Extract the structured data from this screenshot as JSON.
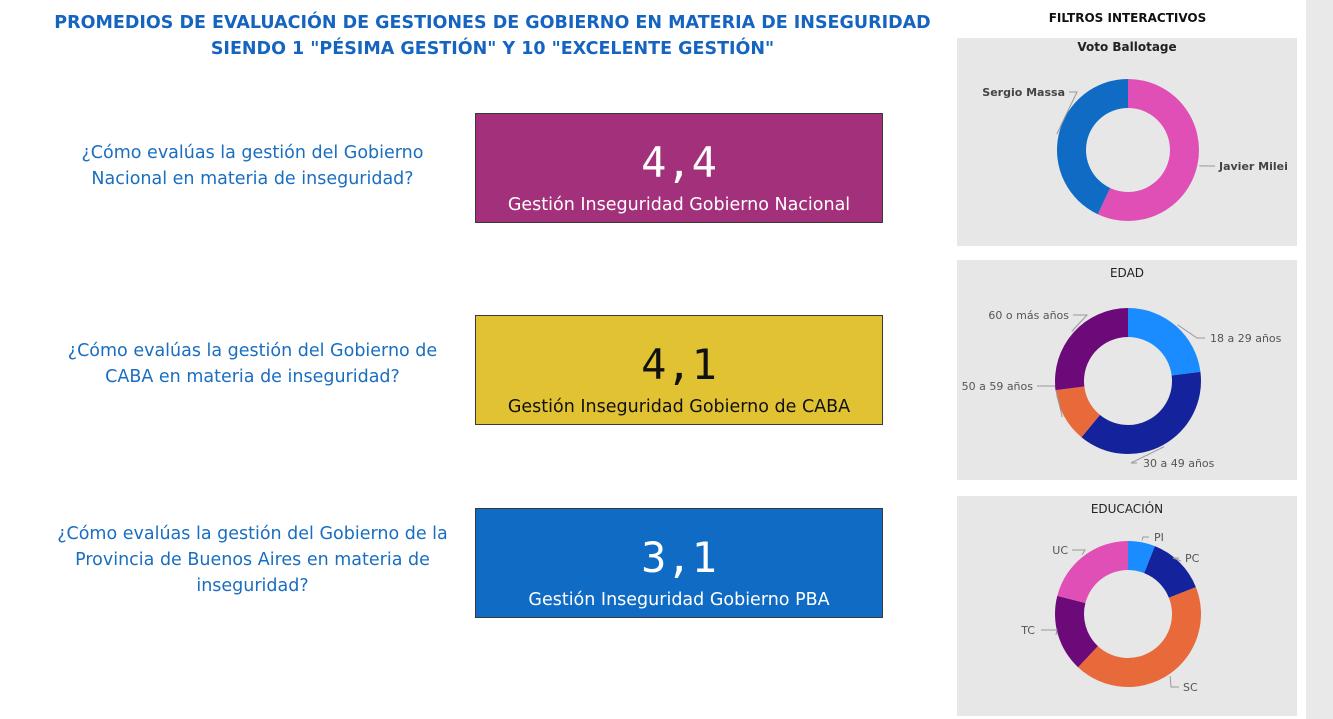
{
  "header": {
    "title_line1": "PROMEDIOS DE EVALUACIÓN DE GESTIONES DE GOBIERNO EN MATERIA DE INSEGURIDAD",
    "title_line2": "SIENDO 1 \"PÉSIMA GESTIÓN\" Y 10 \"EXCELENTE GESTIÓN\""
  },
  "questions": [
    {
      "text": "¿Cómo evalúas la gestión del Gobierno Nacional en materia de inseguridad?"
    },
    {
      "text": "¿Cómo evalúas la gestión del Gobierno de CABA en materia de inseguridad?"
    },
    {
      "text": "¿Cómo evalúas la gestión del Gobierno de la Provincia de Buenos Aires en materia de inseguridad?"
    }
  ],
  "cards": [
    {
      "value": "4,4",
      "label": "Gestión Inseguridad Gobierno Nacional",
      "bg": "#a3307a",
      "fg": "#ffffff"
    },
    {
      "value": "4,1",
      "label": "Gestión Inseguridad Gobierno de CABA",
      "bg": "#e0c232",
      "fg": "#111111"
    },
    {
      "value": "3,1",
      "label": "Gestión Inseguridad Gobierno PBA",
      "bg": "#0f6bc4",
      "fg": "#ffffff"
    }
  ],
  "filters": {
    "title": "FILTROS INTERACTIVOS"
  },
  "chart_data": [
    {
      "type": "pie",
      "title": "Voto Ballotage",
      "slices": [
        {
          "label": "Javier Milei",
          "value": 57,
          "color": "#e04fb6"
        },
        {
          "label": "Sergio Massa",
          "value": 43,
          "color": "#0f6bc4"
        }
      ]
    },
    {
      "type": "pie",
      "title": "EDAD",
      "slices": [
        {
          "label": "18 a 29 años",
          "value": 23,
          "color": "#1a8cff"
        },
        {
          "label": "30 a 49 años",
          "value": 38,
          "color": "#14239b"
        },
        {
          "label": "50 a 59 años",
          "value": 12,
          "color": "#e8693a"
        },
        {
          "label": "60 o más años",
          "value": 27,
          "color": "#6b0a78"
        }
      ]
    },
    {
      "type": "pie",
      "title": "EDUCACIÓN",
      "slices": [
        {
          "label": "PI",
          "value": 6,
          "color": "#1a8cff"
        },
        {
          "label": "PC",
          "value": 13,
          "color": "#14239b"
        },
        {
          "label": "SC",
          "value": 43,
          "color": "#e8693a"
        },
        {
          "label": "TC",
          "value": 17,
          "color": "#6b0a78"
        },
        {
          "label": "UC",
          "value": 21,
          "color": "#e04fb6"
        }
      ]
    }
  ]
}
